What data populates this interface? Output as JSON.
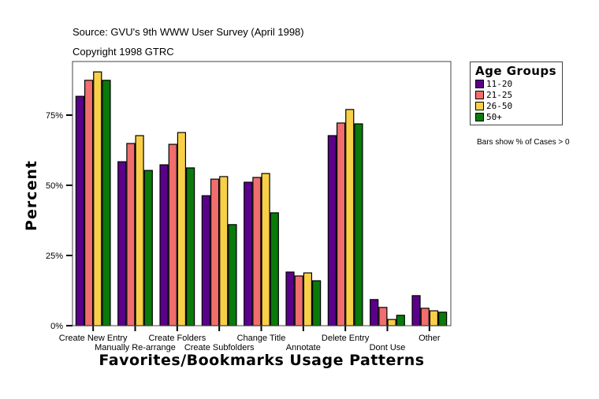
{
  "header": {
    "source": "Source: GVU's 9th WWW User Survey (April 1998)",
    "copyright": "Copyright 1998 GTRC"
  },
  "legend": {
    "title": "Age Groups",
    "items": [
      {
        "label": "11-20",
        "color": "#5a0089"
      },
      {
        "label": "21-25",
        "color": "#f06e6e"
      },
      {
        "label": "26-50",
        "color": "#f8d048"
      },
      {
        "label": "50+",
        "color": "#0a7a0a"
      }
    ]
  },
  "note": "Bars show % of Cases > 0",
  "chart_data": {
    "type": "bar",
    "title": "",
    "xlabel": "Favorites/Bookmarks Usage Patterns",
    "ylabel": "Percent",
    "ylim": [
      0,
      94
    ],
    "yticks": [
      0,
      25,
      50,
      75
    ],
    "ytick_labels": [
      "0%",
      "25%",
      "50%",
      "75%"
    ],
    "grid": false,
    "legend_position": "right",
    "categories": [
      "Create New Entry",
      "Manually Re-arrange",
      "Create Folders",
      "Create Subfolders",
      "Change Title",
      "Annotate",
      "Delete Entry",
      "Dont Use",
      "Other"
    ],
    "series": [
      {
        "name": "11-20",
        "color": "#5a0089",
        "values": [
          81.7,
          58.4,
          57.3,
          46.3,
          51.1,
          19.1,
          67.7,
          9.3,
          10.7
        ]
      },
      {
        "name": "21-25",
        "color": "#f06e6e",
        "values": [
          87.4,
          64.9,
          64.6,
          52.2,
          52.8,
          17.7,
          72.2,
          6.5,
          6.2
        ]
      },
      {
        "name": "26-50",
        "color": "#f8d048",
        "values": [
          90.4,
          67.7,
          68.8,
          53.1,
          54.2,
          18.8,
          77.0,
          2.2,
          5.3
        ]
      },
      {
        "name": "50+",
        "color": "#0a7a0a",
        "values": [
          87.4,
          55.3,
          56.2,
          36.0,
          40.2,
          16.0,
          71.9,
          3.7,
          4.8
        ]
      }
    ]
  }
}
